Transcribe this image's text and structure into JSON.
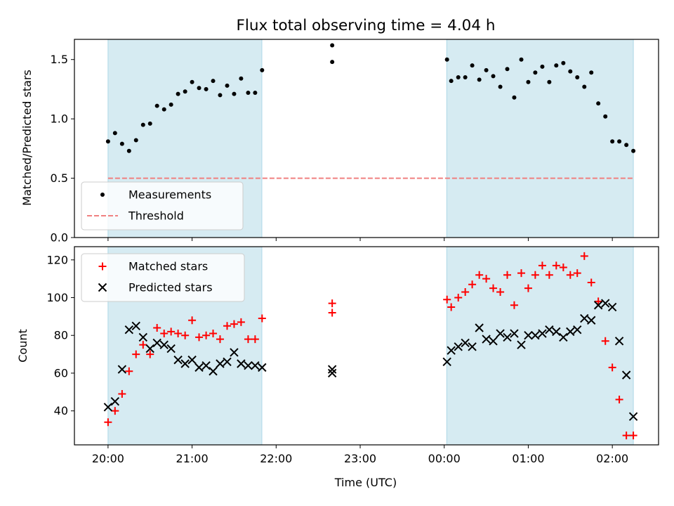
{
  "chart_data": [
    {
      "type": "scatter",
      "title": "Flux total observing time = 4.04 h",
      "xlabel": "",
      "ylabel": "Matched/Predicted stars",
      "ylim": [
        0,
        1.67
      ],
      "yticks": [
        "0.0",
        "0.5",
        "1.0",
        "1.5"
      ],
      "ytick_values": [
        0,
        0.5,
        1.0,
        1.5
      ],
      "xlim_hours": [
        19.6,
        26.55
      ],
      "grid": false,
      "legend_position": "lower-left",
      "shaded_spans_hours": [
        [
          20.0,
          21.83
        ],
        [
          24.03,
          26.25
        ]
      ],
      "series": [
        {
          "name": "Measurements",
          "marker": "dot",
          "color": "#000000",
          "x_hours": [
            20.0,
            20.083,
            20.167,
            20.25,
            20.333,
            20.417,
            20.5,
            20.583,
            20.667,
            20.75,
            20.833,
            20.917,
            21.0,
            21.083,
            21.167,
            21.25,
            21.333,
            21.417,
            21.5,
            21.583,
            21.667,
            21.75,
            21.833,
            22.667,
            22.667,
            24.033,
            24.083,
            24.167,
            24.25,
            24.333,
            24.417,
            24.5,
            24.583,
            24.667,
            24.75,
            24.833,
            24.917,
            25.0,
            25.083,
            25.167,
            25.25,
            25.333,
            25.417,
            25.5,
            25.583,
            25.667,
            25.75,
            25.833,
            25.917,
            26.0,
            26.083,
            26.167,
            26.25
          ],
          "values": [
            0.81,
            0.88,
            0.79,
            0.73,
            0.82,
            0.95,
            0.96,
            1.11,
            1.08,
            1.12,
            1.21,
            1.23,
            1.31,
            1.26,
            1.25,
            1.32,
            1.2,
            1.28,
            1.21,
            1.34,
            1.22,
            1.22,
            1.41,
            1.48,
            1.62,
            1.5,
            1.32,
            1.35,
            1.35,
            1.45,
            1.33,
            1.41,
            1.36,
            1.27,
            1.42,
            1.18,
            1.5,
            1.31,
            1.39,
            1.44,
            1.31,
            1.45,
            1.47,
            1.4,
            1.35,
            1.27,
            1.39,
            1.13,
            1.02,
            0.81,
            0.81,
            0.78,
            0.73
          ]
        },
        {
          "name": "Threshold",
          "marker": "dashed-line",
          "color": "#f08080",
          "x_hours": [
            20.0,
            26.25
          ],
          "values": [
            0.5,
            0.5
          ]
        }
      ]
    },
    {
      "type": "scatter",
      "title": "",
      "xlabel": "Time (UTC)",
      "ylabel": "Count",
      "ylim": [
        22,
        127
      ],
      "yticks": [
        "40",
        "60",
        "80",
        "100",
        "120"
      ],
      "ytick_values": [
        40,
        60,
        80,
        100,
        120
      ],
      "xlim_hours": [
        19.6,
        26.55
      ],
      "xticks": [
        "20:00",
        "21:00",
        "22:00",
        "23:00",
        "00:00",
        "01:00",
        "02:00"
      ],
      "xtick_hours": [
        20,
        21,
        22,
        23,
        24,
        25,
        26
      ],
      "grid": false,
      "legend_position": "upper-left",
      "shaded_spans_hours": [
        [
          20.0,
          21.83
        ],
        [
          24.03,
          26.25
        ]
      ],
      "series": [
        {
          "name": "Matched stars",
          "marker": "plus",
          "color": "#ff0000",
          "x_hours": [
            20.0,
            20.083,
            20.167,
            20.25,
            20.333,
            20.417,
            20.5,
            20.583,
            20.667,
            20.75,
            20.833,
            20.917,
            21.0,
            21.083,
            21.167,
            21.25,
            21.333,
            21.417,
            21.5,
            21.583,
            21.667,
            21.75,
            21.833,
            22.667,
            22.667,
            24.033,
            24.083,
            24.167,
            24.25,
            24.333,
            24.417,
            24.5,
            24.583,
            24.667,
            24.75,
            24.833,
            24.917,
            25.0,
            25.083,
            25.167,
            25.25,
            25.333,
            25.417,
            25.5,
            25.583,
            25.667,
            25.75,
            25.833,
            25.917,
            26.0,
            26.083,
            26.167,
            26.25
          ],
          "values": [
            34,
            40,
            49,
            61,
            70,
            75,
            70,
            84,
            81,
            82,
            81,
            80,
            88,
            79,
            80,
            81,
            78,
            85,
            86,
            87,
            78,
            78,
            89,
            92,
            97,
            99,
            95,
            100,
            103,
            107,
            112,
            110,
            105,
            103,
            112,
            96,
            113,
            105,
            112,
            117,
            112,
            117,
            116,
            112,
            113,
            122,
            108,
            98,
            77,
            63,
            46,
            27,
            27
          ]
        },
        {
          "name": "Predicted stars",
          "marker": "x",
          "color": "#000000",
          "x_hours": [
            20.0,
            20.083,
            20.167,
            20.25,
            20.333,
            20.417,
            20.5,
            20.583,
            20.667,
            20.75,
            20.833,
            20.917,
            21.0,
            21.083,
            21.167,
            21.25,
            21.333,
            21.417,
            21.5,
            21.583,
            21.667,
            21.75,
            21.833,
            22.667,
            22.667,
            24.033,
            24.083,
            24.167,
            24.25,
            24.333,
            24.417,
            24.5,
            24.583,
            24.667,
            24.75,
            24.833,
            24.917,
            25.0,
            25.083,
            25.167,
            25.25,
            25.333,
            25.417,
            25.5,
            25.583,
            25.667,
            25.75,
            25.833,
            25.917,
            26.0,
            26.083,
            26.167,
            26.25
          ],
          "values": [
            42,
            45,
            62,
            83,
            85,
            79,
            73,
            76,
            75,
            73,
            67,
            65,
            67,
            63,
            64,
            61,
            65,
            66,
            71,
            65,
            64,
            64,
            63,
            60,
            62,
            66,
            72,
            74,
            76,
            74,
            84,
            78,
            77,
            81,
            79,
            81,
            75,
            80,
            80,
            81,
            83,
            82,
            79,
            82,
            83,
            89,
            88,
            96,
            97,
            95,
            77,
            59,
            37
          ]
        }
      ]
    }
  ]
}
